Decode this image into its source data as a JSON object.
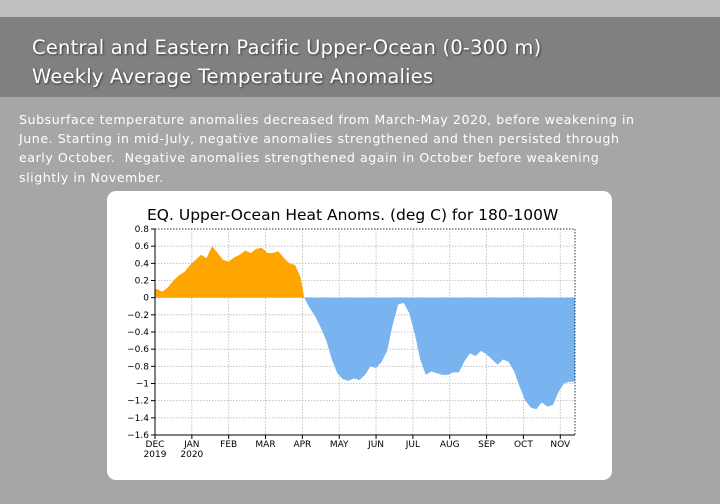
{
  "slide": {
    "title_line1": "Central and Eastern Pacific Upper-Ocean (0-300 m)",
    "title_line2": "Weekly Average Temperature Anomalies",
    "body": "Subsurface temperature anomalies decreased from March-May 2020, before weakening in\nJune. Starting in mid-July, negative anomalies strengthened and then persisted through\nearly October.  Negative anomalies strengthened again in October before weakening\nslightly in November."
  },
  "colors": {
    "positive": "#ffa500",
    "negative": "#7ab4f0",
    "grid": "#b8b8b8",
    "background": "#a6a6a6",
    "title_band": "#808080"
  },
  "chart_data": {
    "type": "area",
    "title": "EQ. Upper-Ocean Heat Anoms. (deg C) for 180-100W",
    "xlabel": "",
    "ylabel": "",
    "ylim": [
      -1.6,
      0.8
    ],
    "y_ticks": [
      0.8,
      0.6,
      0.4,
      0.2,
      0,
      -0.2,
      -0.4,
      -0.6,
      -0.8,
      -1,
      -1.2,
      -1.4,
      -1.6
    ],
    "y_tick_labels": [
      "0.8",
      "0.6",
      "0.4",
      "0.2",
      "0",
      "−0.2",
      "−0.4",
      "−0.6",
      "−0.8",
      "−1",
      "−1.2",
      "−1.4",
      "−1.6"
    ],
    "month_labels": [
      "DEC",
      "JAN",
      "FEB",
      "MAR",
      "APR",
      "MAY",
      "JUN",
      "JUL",
      "AUG",
      "SEP",
      "OCT",
      "NOV"
    ],
    "year_labels": [
      "2019",
      "2020"
    ],
    "grid": true,
    "x_unit": "months since Dec 1, 2019",
    "x_range": [
      0,
      11.4
    ],
    "x": [
      0,
      0.05,
      0.2,
      0.35,
      0.5,
      0.65,
      0.8,
      0.95,
      1.1,
      1.25,
      1.4,
      1.55,
      1.7,
      1.85,
      2.0,
      2.15,
      2.3,
      2.45,
      2.6,
      2.75,
      2.9,
      3.05,
      3.2,
      3.35,
      3.5,
      3.65,
      3.8,
      3.95,
      4.05,
      4.2,
      4.35,
      4.5,
      4.65,
      4.8,
      4.95,
      5.1,
      5.25,
      5.4,
      5.55,
      5.7,
      5.85,
      6.0,
      6.15,
      6.3,
      6.45,
      6.6,
      6.75,
      6.9,
      7.05,
      7.2,
      7.35,
      7.5,
      7.65,
      7.8,
      7.95,
      8.1,
      8.25,
      8.4,
      8.55,
      8.7,
      8.85,
      9.0,
      9.15,
      9.3,
      9.45,
      9.6,
      9.75,
      9.9,
      10.05,
      10.2,
      10.35,
      10.5,
      10.65,
      10.8,
      10.95,
      11.1,
      11.25,
      11.4
    ],
    "values": [
      0.1,
      0.1,
      0.07,
      0.12,
      0.2,
      0.26,
      0.3,
      0.38,
      0.44,
      0.5,
      0.46,
      0.6,
      0.52,
      0.44,
      0.42,
      0.47,
      0.5,
      0.55,
      0.52,
      0.57,
      0.58,
      0.52,
      0.52,
      0.54,
      0.46,
      0.4,
      0.38,
      0.24,
      0.0,
      -0.12,
      -0.22,
      -0.35,
      -0.5,
      -0.72,
      -0.88,
      -0.95,
      -0.97,
      -0.94,
      -0.96,
      -0.9,
      -0.8,
      -0.82,
      -0.75,
      -0.62,
      -0.32,
      -0.08,
      -0.06,
      -0.18,
      -0.42,
      -0.72,
      -0.9,
      -0.86,
      -0.88,
      -0.9,
      -0.9,
      -0.87,
      -0.87,
      -0.74,
      -0.65,
      -0.68,
      -0.62,
      -0.66,
      -0.72,
      -0.78,
      -0.72,
      -0.75,
      -0.86,
      -1.04,
      -1.2,
      -1.28,
      -1.3,
      -1.22,
      -1.27,
      -1.25,
      -1.1,
      -1.0,
      -0.98,
      -0.98
    ]
  }
}
